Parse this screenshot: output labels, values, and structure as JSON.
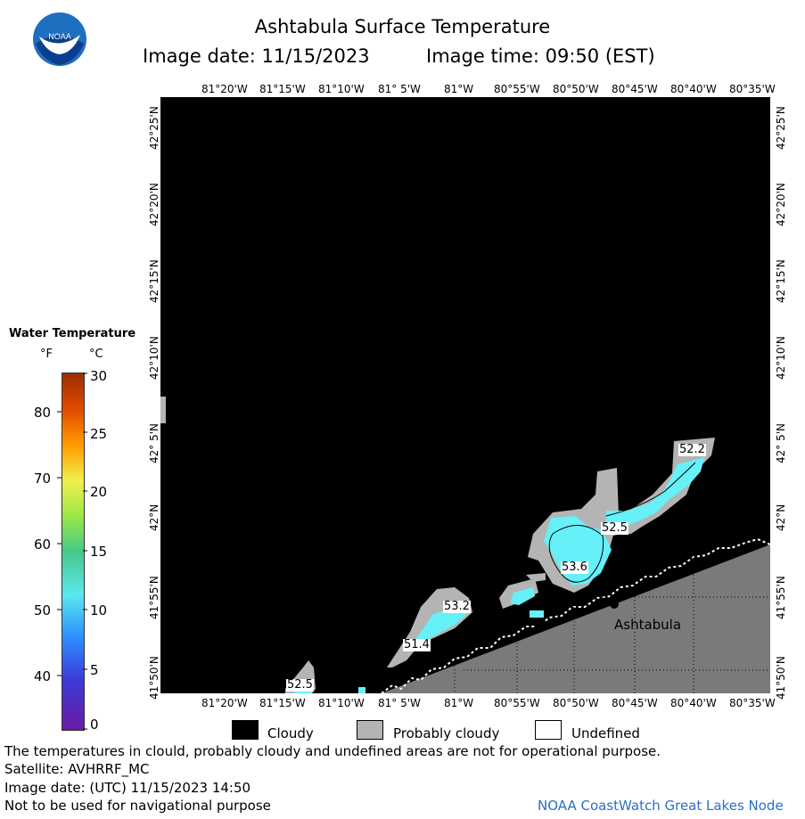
{
  "header": {
    "title": "Ashtabula Surface Temperature",
    "image_date": "Image date: 11/15/2023",
    "image_time": "Image time: 09:50 (EST)"
  },
  "logo": {
    "text": "NOAA"
  },
  "colorbar": {
    "title": "Water Temperature",
    "unit_f": "°F",
    "unit_c": "°C",
    "f_ticks": [
      "80",
      "70",
      "60",
      "50",
      "40"
    ],
    "c_ticks": [
      "30",
      "25",
      "20",
      "15",
      "10",
      "5",
      "0"
    ]
  },
  "map": {
    "lon_labels": [
      "81°20'W",
      "81°15'W",
      "81°10'W",
      "81° 5'W",
      "81°W",
      "80°55'W",
      "80°50'W",
      "80°45'W",
      "80°40'W",
      "80°35'W"
    ],
    "lat_labels": [
      "42°25'N",
      "42°20'N",
      "42°15'N",
      "42°10'N",
      "42° 5'N",
      "42°N",
      "41°55'N",
      "41°50'N"
    ],
    "city": "Ashtabula",
    "temp_labels": [
      "52.2",
      "52.5",
      "53.6",
      "53.2",
      "51.4",
      "52.5"
    ],
    "colors": {
      "cloudy": "#000000",
      "probably_cloudy": "#b4b4b4",
      "undefined": "#ffffff",
      "land": "#7a7a7a",
      "water_temp": "#66f0f8"
    }
  },
  "legend": {
    "cloudy": "Cloudy",
    "probably_cloudy": "Probably cloudy",
    "undefined": "Undefined"
  },
  "footer": {
    "note": "The temperatures in clould, probably cloudy and undefined areas are not for operational purpose.",
    "satellite": "Satellite: AVHRRF_MC",
    "utc_date": "Image date: (UTC) 11/15/2023  14:50",
    "nav": "Not to be used for navigational purpose",
    "credit": "NOAA CoastWatch Great Lakes Node"
  }
}
